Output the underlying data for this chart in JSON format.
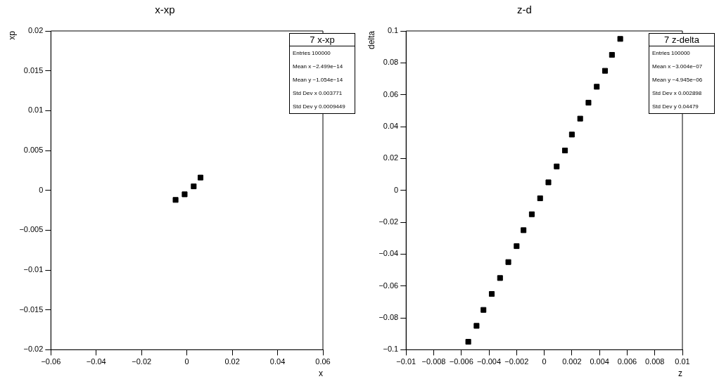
{
  "chart_data": [
    {
      "type": "scatter",
      "title": "x-xp",
      "xlabel": "x",
      "ylabel": "xp",
      "marker": "square",
      "grid": false,
      "legend": false,
      "series": [
        {
          "color": "#000000",
          "x": [
            -0.005,
            -0.001,
            0.003,
            0.006
          ],
          "values": [
            -0.0012,
            -0.0005,
            0.0005,
            0.0016
          ]
        }
      ],
      "xlim": [
        -0.06,
        0.06
      ],
      "xticks": [
        -0.06,
        -0.04,
        -0.02,
        0,
        0.02,
        0.04,
        0.06
      ],
      "ylim": [
        -0.02,
        0.02
      ],
      "yticks": [
        -0.02,
        -0.015,
        -0.01,
        -0.005,
        0,
        0.005,
        0.01,
        0.015,
        0.02
      ],
      "annotations": [
        "7 x-xp",
        "Entries 100000",
        "Mean x −2.499e−14",
        "Mean y −1.054e−14",
        "Std Dev x 0.003771",
        "Std Dev y 0.0009449"
      ]
    },
    {
      "type": "scatter",
      "title": "z-d",
      "xlabel": "z",
      "ylabel": "delta",
      "marker": "square",
      "grid": false,
      "legend": false,
      "series": [
        {
          "color": "#000000",
          "x": [
            -0.0055,
            -0.0049,
            -0.0044,
            -0.0038,
            -0.0032,
            -0.0026,
            -0.002,
            -0.0015,
            -0.0009,
            -0.0003,
            0.0003,
            0.0009,
            0.0015,
            0.002,
            0.0026,
            0.0032,
            0.0038,
            0.0044,
            0.0049,
            0.0055
          ],
          "values": [
            -0.095,
            -0.085,
            -0.075,
            -0.065,
            -0.055,
            -0.045,
            -0.035,
            -0.025,
            -0.015,
            -0.005,
            0.005,
            0.015,
            0.025,
            0.035,
            0.045,
            0.055,
            0.065,
            0.075,
            0.085,
            0.095
          ]
        }
      ],
      "xlim": [
        -0.01,
        0.01
      ],
      "xticks": [
        -0.01,
        -0.008,
        -0.006,
        -0.004,
        -0.002,
        0,
        0.002,
        0.004,
        0.006,
        0.008,
        0.01
      ],
      "ylim": [
        -0.1,
        0.1
      ],
      "yticks": [
        -0.1,
        -0.08,
        -0.06,
        -0.04,
        -0.02,
        0,
        0.02,
        0.04,
        0.06,
        0.08,
        0.1
      ],
      "annotations": [
        "7 z-delta",
        "Entries 100000",
        "Mean x −3.004e−07",
        "Mean y −4.945e−06",
        "Std Dev x 0.002898",
        "Std Dev y 0.04479"
      ]
    }
  ]
}
